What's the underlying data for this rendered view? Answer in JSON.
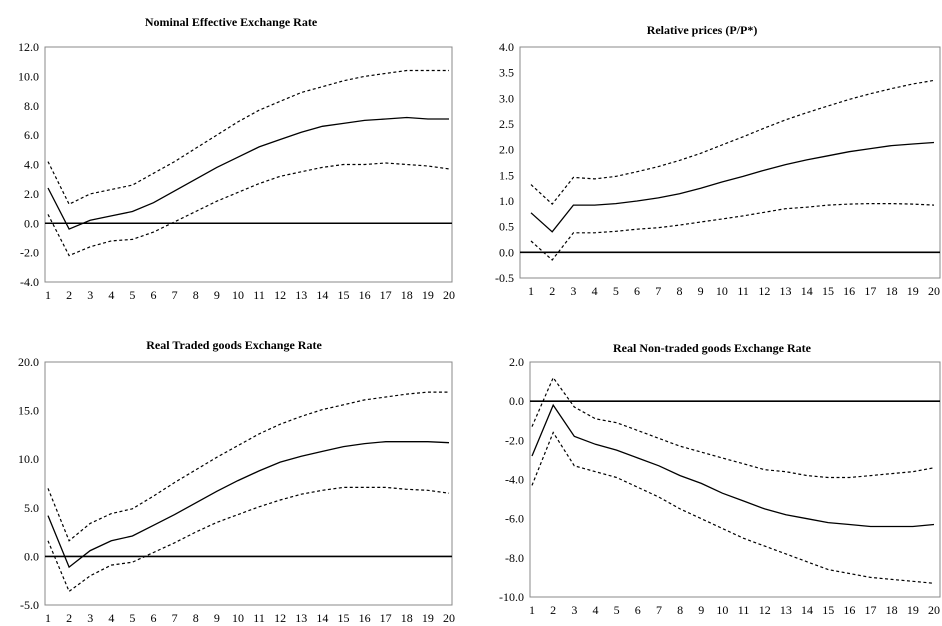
{
  "chart_data": [
    {
      "type": "line",
      "title": "Nominal Effective Exchange Rate",
      "xlabel": "",
      "ylabel": "",
      "x": [
        1,
        2,
        3,
        4,
        5,
        6,
        7,
        8,
        9,
        10,
        11,
        12,
        13,
        14,
        15,
        16,
        17,
        18,
        19,
        20
      ],
      "ylim": [
        -4.0,
        12.0
      ],
      "yticks": [
        "-4.0",
        "-2.0",
        "0.0",
        "2.0",
        "4.0",
        "6.0",
        "8.0",
        "10.0",
        "12.0"
      ],
      "grid": false,
      "legend": "none",
      "series": [
        {
          "style": "solid",
          "values": [
            2.4,
            -0.4,
            0.2,
            0.5,
            0.8,
            1.4,
            2.2,
            3.0,
            3.8,
            4.5,
            5.2,
            5.7,
            6.2,
            6.6,
            6.8,
            7.0,
            7.1,
            7.2,
            7.1,
            7.1
          ]
        },
        {
          "style": "dashed",
          "values": [
            4.2,
            1.3,
            2.0,
            2.3,
            2.6,
            3.4,
            4.2,
            5.1,
            6.0,
            6.9,
            7.7,
            8.3,
            8.9,
            9.3,
            9.7,
            10.0,
            10.2,
            10.4,
            10.4,
            10.4
          ]
        },
        {
          "style": "dashed",
          "values": [
            0.6,
            -2.2,
            -1.6,
            -1.2,
            -1.1,
            -0.6,
            0.1,
            0.8,
            1.5,
            2.1,
            2.7,
            3.2,
            3.5,
            3.8,
            4.0,
            4.0,
            4.1,
            4.0,
            3.9,
            3.7
          ]
        }
      ]
    },
    {
      "type": "line",
      "title": "Relative prices (P/P*)",
      "xlabel": "",
      "ylabel": "",
      "x": [
        1,
        2,
        3,
        4,
        5,
        6,
        7,
        8,
        9,
        10,
        11,
        12,
        13,
        14,
        15,
        16,
        17,
        18,
        19,
        20
      ],
      "ylim": [
        -0.5,
        4.0
      ],
      "yticks": [
        "-0.5",
        "0.0",
        "0.5",
        "1.0",
        "1.5",
        "2.0",
        "2.5",
        "3.0",
        "3.5",
        "4.0"
      ],
      "grid": false,
      "legend": "none",
      "series": [
        {
          "style": "solid",
          "values": [
            0.77,
            0.4,
            0.92,
            0.92,
            0.95,
            1.0,
            1.06,
            1.14,
            1.25,
            1.37,
            1.48,
            1.6,
            1.71,
            1.8,
            1.88,
            1.96,
            2.02,
            2.08,
            2.11,
            2.14
          ]
        },
        {
          "style": "dashed",
          "values": [
            1.32,
            0.94,
            1.46,
            1.43,
            1.48,
            1.57,
            1.67,
            1.79,
            1.93,
            2.09,
            2.25,
            2.42,
            2.58,
            2.72,
            2.85,
            2.98,
            3.09,
            3.19,
            3.28,
            3.35
          ]
        },
        {
          "style": "dashed",
          "values": [
            0.22,
            -0.15,
            0.38,
            0.38,
            0.41,
            0.45,
            0.48,
            0.53,
            0.59,
            0.65,
            0.71,
            0.78,
            0.85,
            0.88,
            0.92,
            0.94,
            0.95,
            0.95,
            0.94,
            0.92
          ]
        }
      ]
    },
    {
      "type": "line",
      "title": "Real Traded goods Exchange Rate",
      "xlabel": "",
      "ylabel": "",
      "x": [
        1,
        2,
        3,
        4,
        5,
        6,
        7,
        8,
        9,
        10,
        11,
        12,
        13,
        14,
        15,
        16,
        17,
        18,
        19,
        20
      ],
      "ylim": [
        -5.0,
        20.0
      ],
      "yticks": [
        "-5.0",
        "0.0",
        "5.0",
        "10.0",
        "15.0",
        "20.0"
      ],
      "grid": false,
      "legend": "none",
      "series": [
        {
          "style": "solid",
          "values": [
            4.2,
            -1.1,
            0.6,
            1.6,
            2.1,
            3.2,
            4.3,
            5.5,
            6.7,
            7.8,
            8.8,
            9.7,
            10.3,
            10.8,
            11.3,
            11.6,
            11.8,
            11.8,
            11.8,
            11.7
          ]
        },
        {
          "style": "dashed",
          "values": [
            7.0,
            1.6,
            3.4,
            4.4,
            4.9,
            6.2,
            7.6,
            8.9,
            10.2,
            11.4,
            12.6,
            13.6,
            14.4,
            15.1,
            15.6,
            16.1,
            16.4,
            16.7,
            16.9,
            16.9
          ]
        },
        {
          "style": "dashed",
          "values": [
            1.6,
            -3.6,
            -2.0,
            -0.9,
            -0.6,
            0.4,
            1.4,
            2.5,
            3.5,
            4.3,
            5.1,
            5.8,
            6.4,
            6.8,
            7.1,
            7.1,
            7.1,
            6.9,
            6.8,
            6.5
          ]
        }
      ]
    },
    {
      "type": "line",
      "title": "Real Non-traded goods Exchange Rate",
      "xlabel": "",
      "ylabel": "",
      "x": [
        1,
        2,
        3,
        4,
        5,
        6,
        7,
        8,
        9,
        10,
        11,
        12,
        13,
        14,
        15,
        16,
        17,
        18,
        19,
        20
      ],
      "ylim": [
        -10.0,
        2.0
      ],
      "yticks": [
        "-10.0",
        "-8.0",
        "-6.0",
        "-4.0",
        "-2.0",
        "0.0",
        "2.0"
      ],
      "grid": false,
      "legend": "none",
      "series": [
        {
          "style": "solid",
          "values": [
            -2.8,
            -0.2,
            -1.8,
            -2.2,
            -2.5,
            -2.9,
            -3.3,
            -3.8,
            -4.2,
            -4.7,
            -5.1,
            -5.5,
            -5.8,
            -6.0,
            -6.2,
            -6.3,
            -6.4,
            -6.4,
            -6.4,
            -6.3
          ]
        },
        {
          "style": "dashed",
          "values": [
            -1.3,
            1.2,
            -0.3,
            -0.9,
            -1.1,
            -1.5,
            -1.9,
            -2.3,
            -2.6,
            -2.9,
            -3.2,
            -3.5,
            -3.6,
            -3.8,
            -3.9,
            -3.9,
            -3.8,
            -3.7,
            -3.6,
            -3.4
          ]
        },
        {
          "style": "dashed",
          "values": [
            -4.3,
            -1.6,
            -3.3,
            -3.6,
            -3.9,
            -4.4,
            -4.9,
            -5.5,
            -6.0,
            -6.5,
            -7.0,
            -7.4,
            -7.8,
            -8.2,
            -8.6,
            -8.8,
            -9.0,
            -9.1,
            -9.2,
            -9.3
          ]
        }
      ]
    }
  ]
}
